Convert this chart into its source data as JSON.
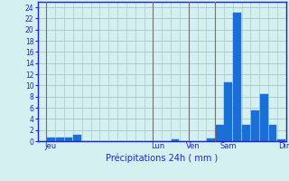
{
  "title": "",
  "xlabel": "Précipitations 24h ( mm )",
  "ylabel": "",
  "background_color": "#d4f0f0",
  "bar_color": "#1a6fd4",
  "bar_edge_color": "#1a6fd4",
  "grid_color": "#aacaca",
  "axis_label_color": "#2222cc",
  "tick_label_color": "#2222cc",
  "spine_color": "#2222cc",
  "vline_color": "#707070",
  "ylim": [
    0,
    25
  ],
  "yticks": [
    0,
    2,
    4,
    6,
    8,
    10,
    12,
    14,
    16,
    18,
    20,
    22,
    24
  ],
  "num_bars": 28,
  "day_labels": [
    "Jeu",
    "Lun",
    "Ven",
    "Sam",
    "Dim"
  ],
  "day_tick_positions": [
    1,
    13,
    17,
    21,
    27.5
  ],
  "day_vline_positions": [
    0.5,
    12.5,
    16.5,
    19.5,
    27.5
  ],
  "bar_values": [
    0,
    0.7,
    0.6,
    0.6,
    1.1,
    0,
    0,
    0,
    0,
    0,
    0,
    0,
    0,
    0,
    0,
    0.4,
    0,
    0,
    0,
    0.5,
    3.0,
    10.5,
    23.0,
    3.0,
    5.5,
    8.5,
    3.0,
    0.4
  ]
}
